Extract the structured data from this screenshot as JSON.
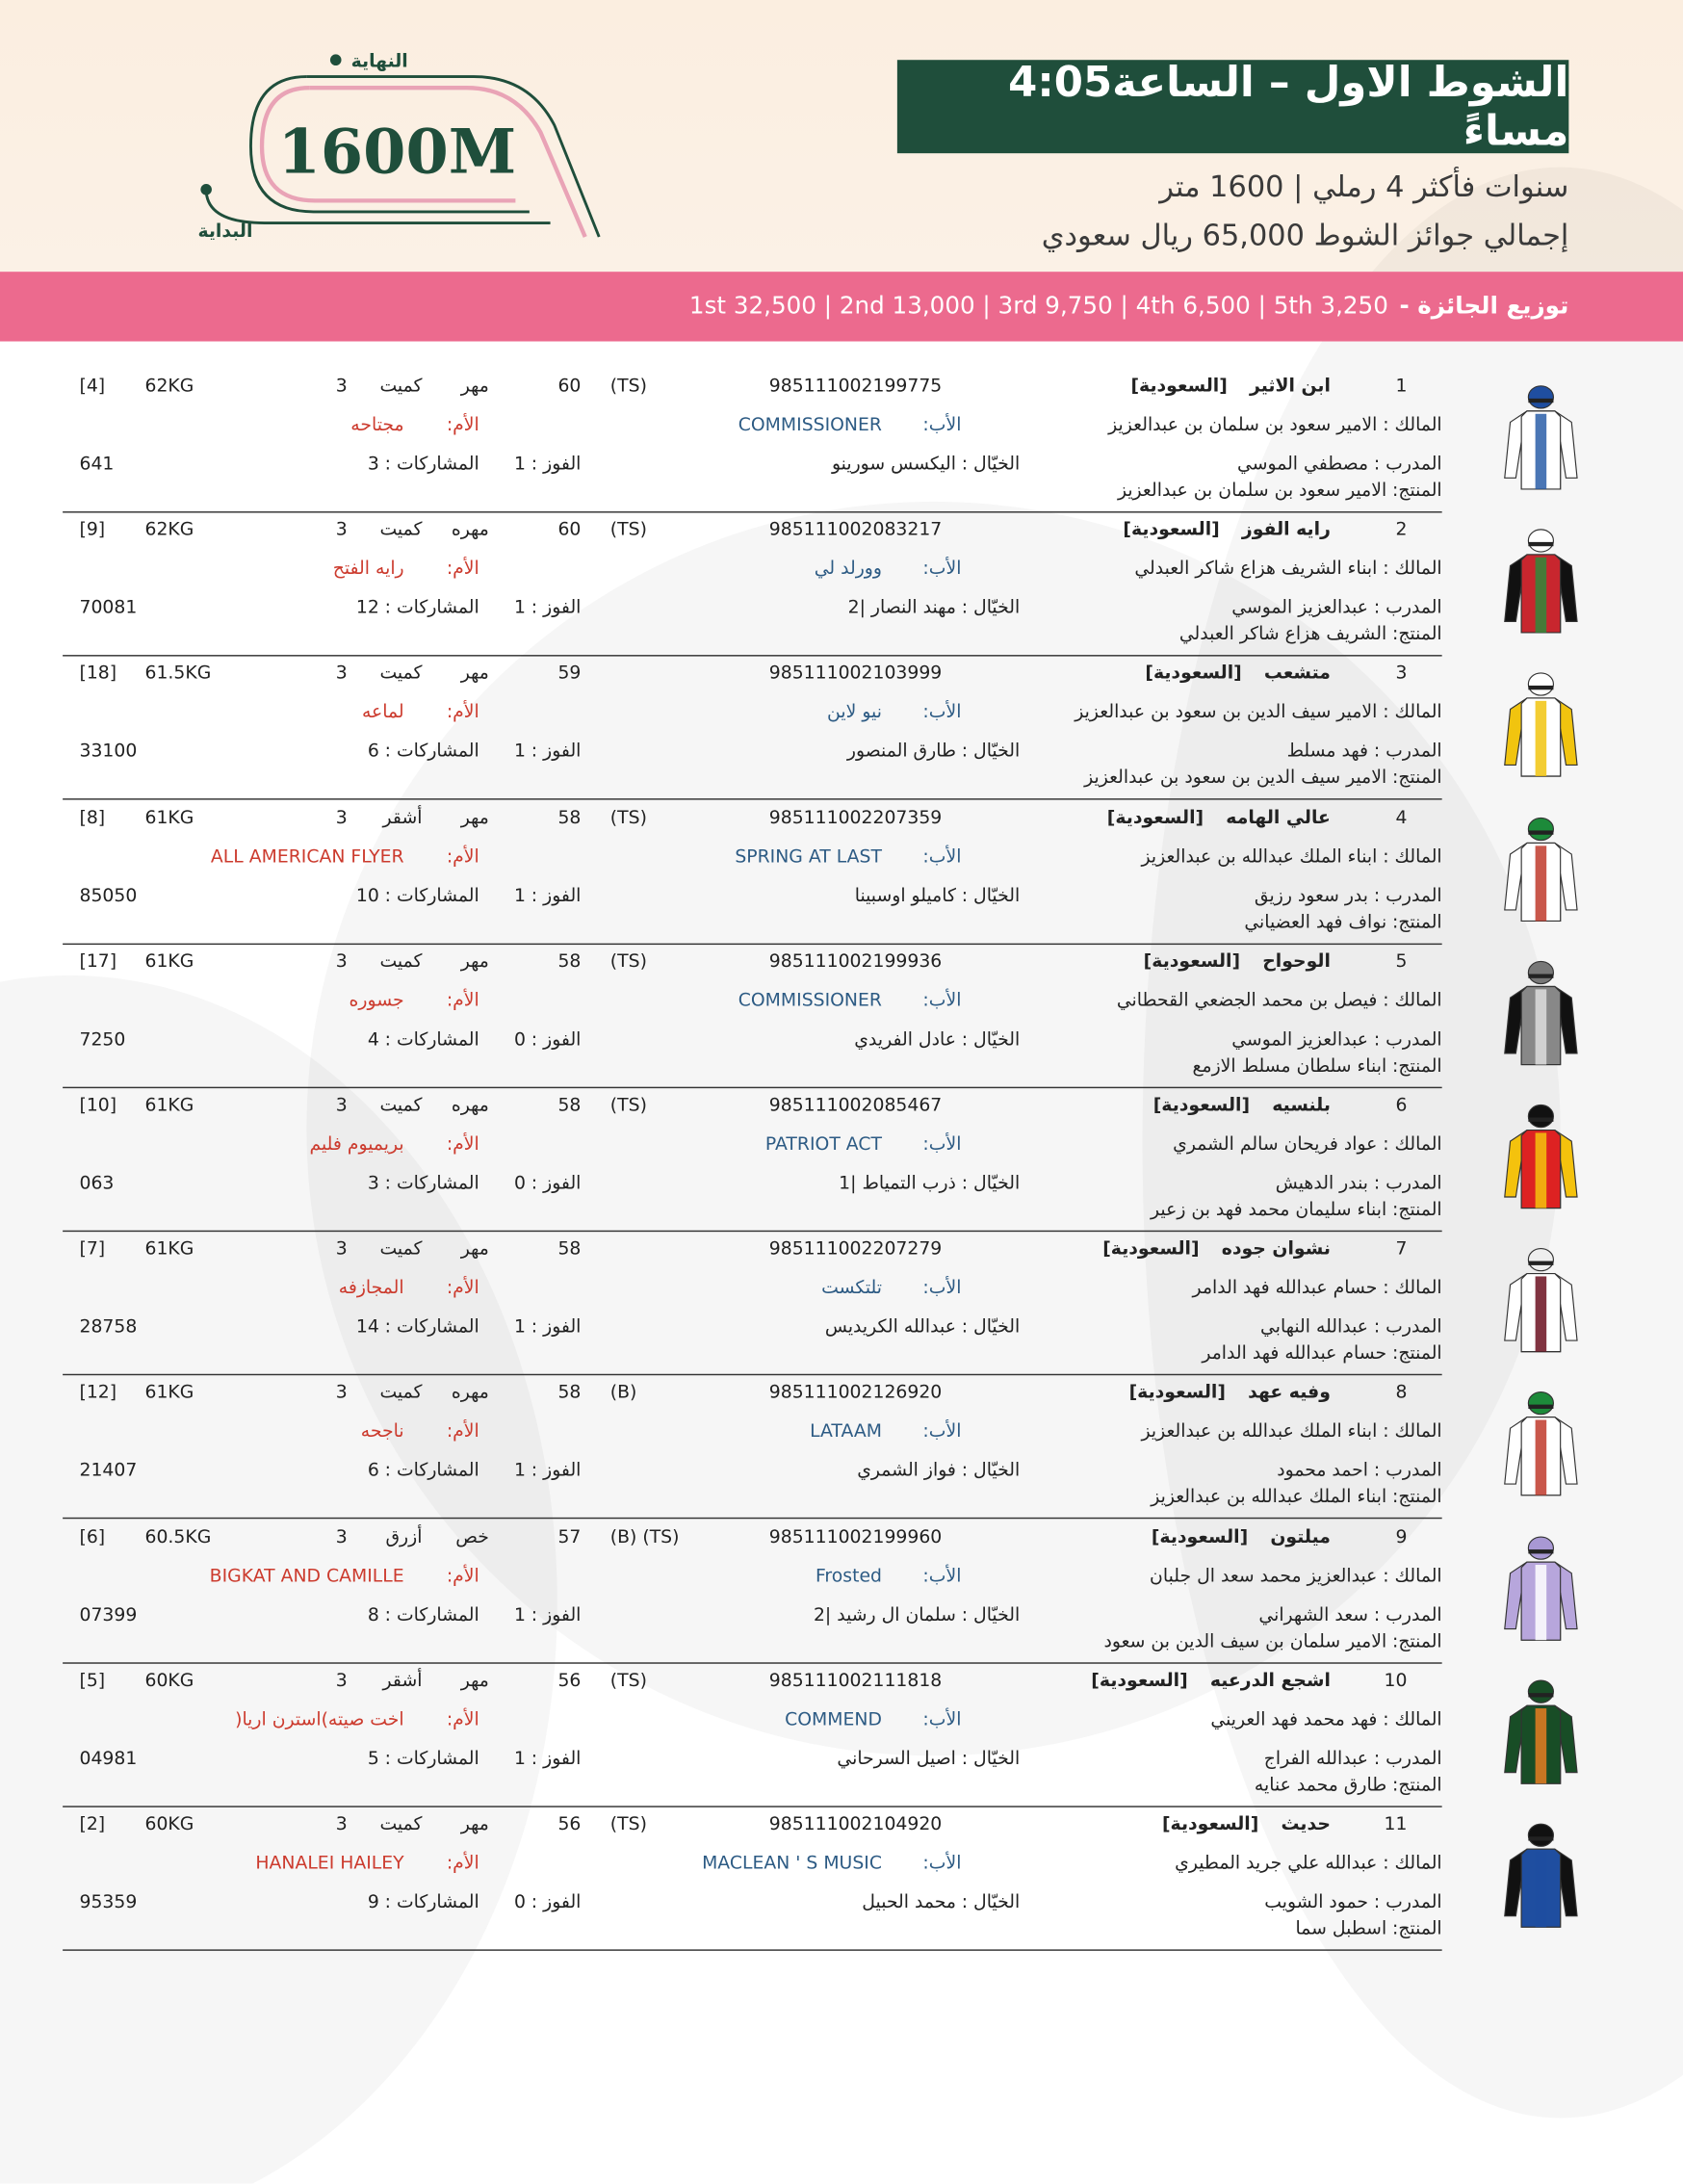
{
  "header": {
    "title": "الشوط الاول – الساعة4:05 مساءً",
    "conditions": "سنوات فأكثر 4 رملي | 1600 متر",
    "total_prize": "إجمالي جوائز الشوط 65,000 ريال سعودي",
    "distance_badge": "1600M",
    "finish": "النهاية",
    "start": "البداية",
    "prize_label": "توزيع الجائزة -",
    "prize_breakdown": "1st 32,500 | 2nd 13,000 | 3rd 9,750 | 4th 6,500 | 5th 3,250"
  },
  "labels": {
    "owner": "المالك :",
    "sire": "الأب:",
    "dam": "الأم:",
    "jockey": "الخيّال :",
    "trainer": "المدرب :",
    "breeder": "المنتج:",
    "wins": "الفوز :",
    "starts": "المشاركات :"
  },
  "runners": [
    {
      "number": 1,
      "name": "ابن الاثير",
      "nationality": "[السعودية]",
      "chip": "985111002199775",
      "tags": "(TS)",
      "rating": 60,
      "sex": "مهر",
      "color": "كميت",
      "age": 3,
      "weight": "62KG",
      "draw": "[4]",
      "owner": "الامير سعود بن سلمان بن عبدالعزيز",
      "sire": "COMMISSIONER",
      "dam": "مجتاحه",
      "jockey": "اليكسس سورينو",
      "trainer": "مصطفي الموسي",
      "breeder": "الامير سعود بن سلمان بن عبدالعزيز",
      "wins": 1,
      "starts": 3,
      "form": "641"
    },
    {
      "number": 2,
      "name": "رايه الفوز",
      "nationality": "[السعودية]",
      "chip": "985111002083217",
      "tags": "(TS)",
      "rating": 60,
      "sex": "مهره",
      "color": "كميت",
      "age": 3,
      "weight": "62KG",
      "draw": "[9]",
      "owner": "ابناء الشريف هزاع شاكر العبدلي",
      "sire": "وورلد لي",
      "dam": "رايه الفتح",
      "jockey": "مهند النصار |2",
      "trainer": "عبدالعزيز الموسي",
      "breeder": "الشريف هزاع شاكر العبدلي",
      "wins": 1,
      "starts": 12,
      "form": "70081"
    },
    {
      "number": 3,
      "name": "متشعب",
      "nationality": "[السعودية]",
      "chip": "985111002103999",
      "tags": null,
      "rating": 59,
      "sex": "مهر",
      "color": "كميت",
      "age": 3,
      "weight": "61.5KG",
      "draw": "[18]",
      "owner": "الامير سيف الدين بن سعود بن عبدالعزيز",
      "sire": "نيو لاين",
      "dam": "لماعه",
      "jockey": "طارق المنصور",
      "trainer": "فهد مسلط",
      "breeder": "الامير سيف الدين بن سعود بن عبدالعزيز",
      "wins": 1,
      "starts": 6,
      "form": "33100"
    },
    {
      "number": 4,
      "name": "عالي الهامه",
      "nationality": "[السعودية]",
      "chip": "985111002207359",
      "tags": "(TS)",
      "rating": 58,
      "sex": "مهر",
      "color": "أشقر",
      "age": 3,
      "weight": "61KG",
      "draw": "[8]",
      "owner": "ابناء الملك عبدالله بن عبدالعزيز",
      "sire": "SPRING AT LAST",
      "dam": "ALL AMERICAN FLYER",
      "jockey": "كاميلو اوسبينا",
      "trainer": "بدر سعود رزيق",
      "breeder": "نواف فهد العضياني",
      "wins": 1,
      "starts": 10,
      "form": "85050"
    },
    {
      "number": 5,
      "name": "الوحواح",
      "nationality": "[السعودية]",
      "chip": "985111002199936",
      "tags": "(TS)",
      "rating": 58,
      "sex": "مهر",
      "color": "كميت",
      "age": 3,
      "weight": "61KG",
      "draw": "[17]",
      "owner": "فيصل بن محمد الجضعي القحطاني",
      "sire": "COMMISSIONER",
      "dam": "جسوره",
      "jockey": "عادل الفريدي",
      "trainer": "عبدالعزيز الموسي",
      "breeder": "ابناء سلطان مسلط الازمع",
      "wins": 0,
      "starts": 4,
      "form": "7250"
    },
    {
      "number": 6,
      "name": "بلنسيه",
      "nationality": "[السعودية]",
      "chip": "985111002085467",
      "tags": "(TS)",
      "rating": 58,
      "sex": "مهره",
      "color": "كميت",
      "age": 3,
      "weight": "61KG",
      "draw": "[10]",
      "owner": "عواد فريحان سالم الشمري",
      "sire": "PATRIOT ACT",
      "dam": "بريميوم فليم",
      "jockey": "ذرب التمياط |1",
      "trainer": "بندر الدهيش",
      "breeder": "ابناء سليمان محمد فهد بن زعير",
      "wins": 0,
      "starts": 3,
      "form": "063"
    },
    {
      "number": 7,
      "name": "نشوان جوده",
      "nationality": "[السعودية]",
      "chip": "985111002207279",
      "tags": null,
      "rating": 58,
      "sex": "مهر",
      "color": "كميت",
      "age": 3,
      "weight": "61KG",
      "draw": "[7]",
      "owner": "حسام عبدالله فهد الدامر",
      "sire": "تلتكست",
      "dam": "المجازفه",
      "jockey": "عبدالله الكريديس",
      "trainer": "عبدالله النهابي",
      "breeder": "حسام عبدالله فهد الدامر",
      "wins": 1,
      "starts": 14,
      "form": "28758"
    },
    {
      "number": 8,
      "name": "وفيه عهد",
      "nationality": "[السعودية]",
      "chip": "985111002126920",
      "tags": "(B)",
      "rating": 58,
      "sex": "مهره",
      "color": "كميت",
      "age": 3,
      "weight": "61KG",
      "draw": "[12]",
      "owner": "ابناء الملك عبدالله بن عبدالعزيز",
      "sire": "LATAAM",
      "dam": "ناجحه",
      "jockey": "فواز الشمري",
      "trainer": "احمد محمود",
      "breeder": "ابناء الملك عبدالله بن عبدالعزيز",
      "wins": 1,
      "starts": 6,
      "form": "21407"
    },
    {
      "number": 9,
      "name": "ميلتون",
      "nationality": "[السعودية]",
      "chip": "985111002199960",
      "tags": "(B)  (TS)",
      "rating": 57,
      "sex": "خص",
      "color": "أزرق",
      "age": 3,
      "weight": "60.5KG",
      "draw": "[6]",
      "owner": "عبدالعزيز محمد سعد ال جلبان",
      "sire": "Frosted",
      "dam": "BIGKAT AND CAMILLE",
      "jockey": "سلمان ال رشيد |2",
      "trainer": "سعد الشهراني",
      "breeder": "الامير سلمان بن سيف الدين بن سعود",
      "wins": 1,
      "starts": 8,
      "form": "07399"
    },
    {
      "number": 10,
      "name": "اشجع الدرعيه",
      "nationality": "[السعودية]",
      "chip": "985111002111818",
      "tags": "(TS)",
      "rating": 56,
      "sex": "مهر",
      "color": "أشقر",
      "age": 3,
      "weight": "60KG",
      "draw": "[5]",
      "owner": "فهد محمد فهد العريني",
      "sire": "COMMEND",
      "dam": "اخت صيته)استرن اريا(",
      "jockey": "اصيل السرحاني",
      "trainer": "عبدالله الفراج",
      "breeder": "طارق محمد عنايه",
      "wins": 1,
      "starts": 5,
      "form": "04981"
    },
    {
      "number": 11,
      "name": "حديث",
      "nationality": "[السعودية]",
      "chip": "985111002104920",
      "tags": "(TS)",
      "rating": 56,
      "sex": "مهر",
      "color": "كميت",
      "age": 3,
      "weight": "60KG",
      "draw": "[2]",
      "owner": "عبدالله علي جريد المطيري",
      "sire": "MACLEAN ' S MUSIC",
      "dam": "HANALEI HAILEY",
      "jockey": "محمد الحبيل",
      "trainer": "حمود الشويب",
      "breeder": "اسطبل سما",
      "wins": 0,
      "starts": 9,
      "form": "95359"
    }
  ]
}
